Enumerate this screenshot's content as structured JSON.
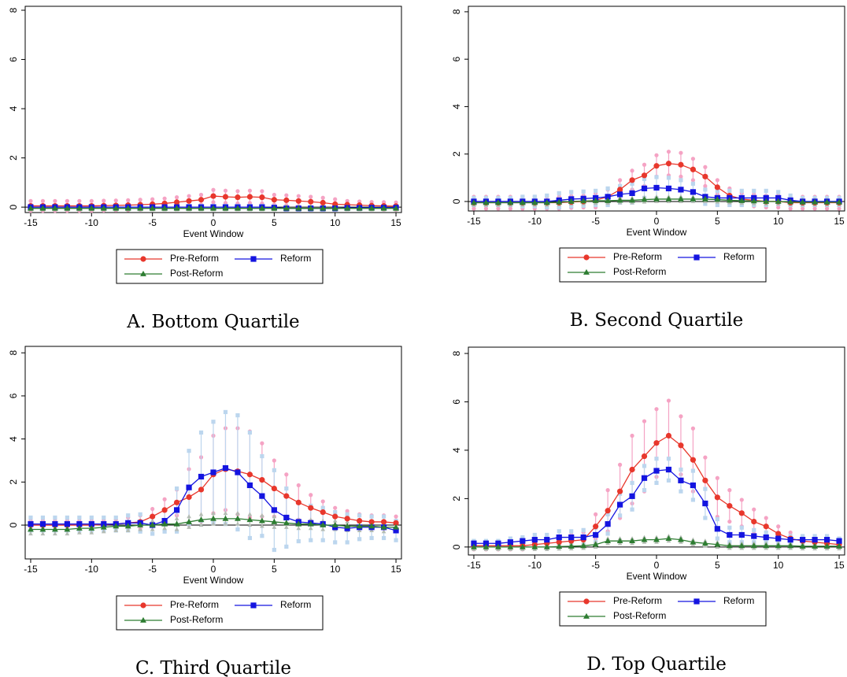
{
  "chart_data": [
    {
      "type": "line",
      "title": "A. Bottom Quartile",
      "xlabel": "Event Window",
      "x": [
        -15,
        -14,
        -13,
        -12,
        -11,
        -10,
        -9,
        -8,
        -7,
        -6,
        -5,
        -4,
        -3,
        -2,
        -1,
        0,
        1,
        2,
        3,
        4,
        5,
        6,
        7,
        8,
        9,
        10,
        11,
        12,
        13,
        14,
        15
      ],
      "xlim": [
        -15.45,
        15.45
      ],
      "ylim": [
        -0.22,
        8.16
      ],
      "xticks": [
        -15,
        -10,
        -5,
        0,
        5,
        10,
        15
      ],
      "yticks": [
        0,
        2,
        4,
        6,
        8
      ],
      "legend": "bottom",
      "series": [
        {
          "name": "Pre-Reform",
          "color": "#e8372c",
          "ci_color": "#f5a3c4",
          "marker": "circle",
          "values": [
            0.05,
            0.05,
            0.05,
            0.05,
            0.05,
            0.05,
            0.06,
            0.07,
            0.08,
            0.1,
            0.12,
            0.15,
            0.2,
            0.25,
            0.3,
            0.45,
            0.42,
            0.4,
            0.42,
            0.4,
            0.3,
            0.28,
            0.25,
            0.22,
            0.18,
            0.12,
            0.1,
            0.08,
            0.06,
            0.05,
            0.04
          ],
          "errors": [
            0.2,
            0.2,
            0.2,
            0.2,
            0.2,
            0.2,
            0.2,
            0.2,
            0.2,
            0.2,
            0.2,
            0.2,
            0.2,
            0.2,
            0.2,
            0.25,
            0.25,
            0.25,
            0.25,
            0.25,
            0.2,
            0.2,
            0.2,
            0.2,
            0.2,
            0.2,
            0.15,
            0.15,
            0.15,
            0.15,
            0.15
          ]
        },
        {
          "name": "Reform",
          "color": "#1414e0",
          "ci_color": "#bcd6ee",
          "marker": "square",
          "values": [
            0,
            0,
            0,
            0,
            0,
            0,
            0,
            0,
            0,
            0,
            0,
            0,
            0,
            0,
            0,
            0,
            0,
            0,
            0,
            0,
            -0.02,
            -0.05,
            -0.05,
            -0.05,
            -0.05,
            -0.05,
            -0.03,
            -0.03,
            -0.02,
            -0.02,
            -0.02
          ],
          "errors": [
            0.05,
            0.05,
            0.05,
            0.05,
            0.05,
            0.05,
            0.05,
            0.05,
            0.05,
            0.05,
            0.05,
            0.05,
            0.05,
            0.05,
            0.05,
            0.05,
            0.05,
            0.05,
            0.05,
            0.05,
            0.05,
            0.05,
            0.05,
            0.05,
            0.05,
            0.05,
            0.05,
            0.05,
            0.05,
            0.05,
            0.05
          ]
        },
        {
          "name": "Post-Reform",
          "color": "#2e7d32",
          "ci_color": "#b4bcb4",
          "marker": "triangle",
          "values": [
            -0.05,
            -0.05,
            -0.05,
            -0.05,
            -0.05,
            -0.05,
            -0.05,
            -0.05,
            -0.05,
            -0.05,
            -0.05,
            -0.05,
            -0.05,
            -0.05,
            -0.05,
            -0.05,
            -0.05,
            -0.05,
            -0.05,
            -0.05,
            -0.05,
            -0.05,
            -0.05,
            -0.05,
            -0.05,
            -0.05,
            -0.05,
            -0.05,
            -0.05,
            -0.05,
            -0.05
          ],
          "errors": [
            0.05,
            0.05,
            0.05,
            0.05,
            0.05,
            0.05,
            0.05,
            0.05,
            0.05,
            0.05,
            0.05,
            0.05,
            0.05,
            0.05,
            0.05,
            0.05,
            0.05,
            0.05,
            0.05,
            0.05,
            0.05,
            0.05,
            0.05,
            0.05,
            0.05,
            0.05,
            0.05,
            0.05,
            0.05,
            0.05,
            0.05
          ]
        }
      ]
    },
    {
      "type": "line",
      "title": "B. Second Quartile",
      "xlabel": "Event Window",
      "x": [
        -15,
        -14,
        -13,
        -12,
        -11,
        -10,
        -9,
        -8,
        -7,
        -6,
        -5,
        -4,
        -3,
        -2,
        -1,
        0,
        1,
        2,
        3,
        4,
        5,
        6,
        7,
        8,
        9,
        10,
        11,
        12,
        13,
        14,
        15
      ],
      "xlim": [
        -15.45,
        15.45
      ],
      "ylim": [
        -0.4,
        8.23
      ],
      "xticks": [
        -15,
        -10,
        -5,
        0,
        5,
        10,
        15
      ],
      "yticks": [
        0,
        2,
        4,
        6,
        8
      ],
      "legend": "bottom",
      "series": [
        {
          "name": "Pre-Reform",
          "color": "#e8372c",
          "ci_color": "#f5a3c4",
          "marker": "circle",
          "values": [
            -0.05,
            -0.05,
            -0.05,
            -0.05,
            -0.05,
            -0.05,
            -0.05,
            -0.05,
            -0.02,
            0,
            0.05,
            0.2,
            0.5,
            0.9,
            1.1,
            1.5,
            1.6,
            1.55,
            1.35,
            1.05,
            0.6,
            0.25,
            0.1,
            0.05,
            0,
            0,
            -0.05,
            -0.05,
            -0.05,
            -0.05,
            -0.05
          ],
          "errors": [
            0.25,
            0.25,
            0.25,
            0.25,
            0.25,
            0.25,
            0.25,
            0.25,
            0.25,
            0.25,
            0.3,
            0.3,
            0.4,
            0.4,
            0.45,
            0.45,
            0.5,
            0.5,
            0.45,
            0.4,
            0.3,
            0.3,
            0.25,
            0.25,
            0.25,
            0.25,
            0.25,
            0.25,
            0.25,
            0.25,
            0.25
          ]
        },
        {
          "name": "Reform",
          "color": "#1414e0",
          "ci_color": "#bcd6ee",
          "marker": "square",
          "values": [
            0,
            0,
            0,
            0,
            0,
            0,
            0,
            0.05,
            0.1,
            0.12,
            0.15,
            0.2,
            0.3,
            0.35,
            0.55,
            0.58,
            0.55,
            0.5,
            0.4,
            0.2,
            0.15,
            0.15,
            0.15,
            0.15,
            0.15,
            0.15,
            0.05,
            0,
            0,
            0,
            0
          ],
          "errors": [
            0.15,
            0.15,
            0.15,
            0.15,
            0.2,
            0.2,
            0.25,
            0.3,
            0.3,
            0.3,
            0.3,
            0.35,
            0.35,
            0.4,
            0.4,
            0.45,
            0.45,
            0.4,
            0.35,
            0.3,
            0.3,
            0.3,
            0.3,
            0.3,
            0.3,
            0.25,
            0.2,
            0.15,
            0.15,
            0.15,
            0.15
          ]
        },
        {
          "name": "Post-Reform",
          "color": "#2e7d32",
          "ci_color": "#b4bcb4",
          "marker": "triangle",
          "values": [
            -0.05,
            -0.05,
            -0.05,
            -0.05,
            -0.05,
            -0.05,
            -0.05,
            -0.03,
            0,
            0.02,
            0.03,
            0.03,
            0.05,
            0.05,
            0.08,
            0.1,
            0.1,
            0.1,
            0.1,
            0.1,
            0.08,
            0.05,
            0.03,
            0.02,
            0,
            0,
            -0.02,
            -0.03,
            -0.03,
            -0.03,
            -0.03
          ],
          "errors": [
            0.1,
            0.1,
            0.1,
            0.1,
            0.1,
            0.1,
            0.1,
            0.1,
            0.1,
            0.1,
            0.1,
            0.1,
            0.1,
            0.1,
            0.1,
            0.1,
            0.1,
            0.1,
            0.1,
            0.1,
            0.1,
            0.1,
            0.1,
            0.1,
            0.1,
            0.1,
            0.1,
            0.1,
            0.1,
            0.1,
            0.1
          ]
        }
      ]
    },
    {
      "type": "line",
      "title": "C. Third Quartile",
      "xlabel": "Event Window",
      "x": [
        -15,
        -14,
        -13,
        -12,
        -11,
        -10,
        -9,
        -8,
        -7,
        -6,
        -5,
        -4,
        -3,
        -2,
        -1,
        0,
        1,
        2,
        3,
        4,
        5,
        6,
        7,
        8,
        9,
        10,
        11,
        12,
        13,
        14,
        15
      ],
      "xlim": [
        -15.45,
        15.45
      ],
      "ylim": [
        -1.57,
        8.3
      ],
      "xticks": [
        -15,
        -10,
        -5,
        0,
        5,
        10,
        15
      ],
      "yticks": [
        0,
        2,
        4,
        6,
        8
      ],
      "legend": "bottom",
      "series": [
        {
          "name": "Pre-Reform",
          "color": "#e8372c",
          "ci_color": "#f5a3c4",
          "marker": "circle",
          "values": [
            0,
            0,
            0,
            0,
            0,
            0,
            0.02,
            0.05,
            0.1,
            0.15,
            0.4,
            0.7,
            1.05,
            1.3,
            1.65,
            2.35,
            2.6,
            2.5,
            2.35,
            2.1,
            1.7,
            1.35,
            1.05,
            0.8,
            0.6,
            0.4,
            0.3,
            0.2,
            0.15,
            0.15,
            0.1
          ],
          "errors": [
            0.2,
            0.2,
            0.2,
            0.2,
            0.2,
            0.2,
            0.2,
            0.2,
            0.25,
            0.3,
            0.35,
            0.5,
            0.6,
            1.3,
            1.5,
            1.8,
            1.9,
            2.0,
            2.0,
            1.7,
            1.3,
            1.0,
            0.8,
            0.6,
            0.5,
            0.4,
            0.35,
            0.3,
            0.3,
            0.3,
            0.3
          ]
        },
        {
          "name": "Reform",
          "color": "#1414e0",
          "ci_color": "#bcd6ee",
          "marker": "square",
          "values": [
            0.05,
            0.05,
            0.05,
            0.05,
            0.05,
            0.05,
            0.05,
            0.05,
            0.1,
            0.1,
            0,
            0.2,
            0.7,
            1.75,
            2.25,
            2.45,
            2.65,
            2.45,
            1.85,
            1.35,
            0.7,
            0.35,
            0.15,
            0.1,
            0.05,
            -0.1,
            -0.15,
            -0.1,
            -0.1,
            -0.1,
            -0.25
          ],
          "errors": [
            0.3,
            0.3,
            0.3,
            0.3,
            0.3,
            0.3,
            0.3,
            0.3,
            0.35,
            0.4,
            0.4,
            0.5,
            1.0,
            1.7,
            2.05,
            2.35,
            2.6,
            2.65,
            2.45,
            1.85,
            1.85,
            1.35,
            0.9,
            0.8,
            0.75,
            0.7,
            0.65,
            0.55,
            0.5,
            0.5,
            0.45
          ]
        },
        {
          "name": "Post-Reform",
          "color": "#2e7d32",
          "ci_color": "#b4bcb4",
          "marker": "triangle",
          "values": [
            -0.2,
            -0.2,
            -0.2,
            -0.2,
            -0.15,
            -0.15,
            -0.1,
            -0.05,
            -0.05,
            0,
            0,
            0.05,
            0.05,
            0.15,
            0.25,
            0.3,
            0.3,
            0.3,
            0.25,
            0.2,
            0.15,
            0.1,
            0.05,
            0.05,
            0,
            0,
            -0.05,
            -0.05,
            -0.05,
            -0.1,
            -0.1
          ],
          "errors": [
            0.2,
            0.2,
            0.2,
            0.2,
            0.2,
            0.2,
            0.2,
            0.2,
            0.2,
            0.2,
            0.2,
            0.2,
            0.25,
            0.25,
            0.25,
            0.25,
            0.25,
            0.25,
            0.25,
            0.25,
            0.25,
            0.2,
            0.2,
            0.2,
            0.2,
            0.2,
            0.2,
            0.2,
            0.2,
            0.2,
            0.2
          ]
        }
      ]
    },
    {
      "type": "line",
      "title": "D. Top Quartile",
      "xlabel": "Event Window",
      "x": [
        -15,
        -14,
        -13,
        -12,
        -11,
        -10,
        -9,
        -8,
        -7,
        -6,
        -5,
        -4,
        -3,
        -2,
        -1,
        0,
        1,
        2,
        3,
        4,
        5,
        6,
        7,
        8,
        9,
        10,
        11,
        12,
        13,
        14,
        15
      ],
      "xlim": [
        -15.45,
        15.45
      ],
      "ylim": [
        -0.33,
        8.26
      ],
      "xticks": [
        -15,
        -10,
        -5,
        0,
        5,
        10,
        15
      ],
      "yticks": [
        0,
        2,
        4,
        6,
        8
      ],
      "legend": "bottom",
      "series": [
        {
          "name": "Pre-Reform",
          "color": "#e8372c",
          "ci_color": "#f5a3c4",
          "marker": "circle",
          "values": [
            0.05,
            0.05,
            0.05,
            0.05,
            0.05,
            0.1,
            0.15,
            0.2,
            0.25,
            0.3,
            0.85,
            1.5,
            2.3,
            3.2,
            3.75,
            4.3,
            4.6,
            4.2,
            3.6,
            2.75,
            2.05,
            1.7,
            1.4,
            1.05,
            0.85,
            0.55,
            0.35,
            0.25,
            0.2,
            0.15,
            0.1
          ],
          "errors": [
            0.15,
            0.15,
            0.15,
            0.15,
            0.15,
            0.15,
            0.2,
            0.2,
            0.25,
            0.3,
            0.5,
            0.85,
            1.1,
            1.4,
            1.45,
            1.4,
            1.45,
            1.2,
            1.3,
            0.95,
            0.8,
            0.65,
            0.55,
            0.5,
            0.35,
            0.3,
            0.25,
            0.2,
            0.2,
            0.2,
            0.15
          ]
        },
        {
          "name": "Reform",
          "color": "#1414e0",
          "ci_color": "#bcd6ee",
          "marker": "square",
          "values": [
            0.15,
            0.15,
            0.15,
            0.2,
            0.25,
            0.3,
            0.3,
            0.4,
            0.4,
            0.4,
            0.5,
            0.95,
            1.75,
            2.1,
            2.85,
            3.15,
            3.2,
            2.75,
            2.55,
            1.8,
            0.75,
            0.5,
            0.5,
            0.45,
            0.4,
            0.35,
            0.3,
            0.3,
            0.3,
            0.3,
            0.25
          ],
          "errors": [
            0.1,
            0.1,
            0.1,
            0.15,
            0.15,
            0.2,
            0.2,
            0.25,
            0.25,
            0.3,
            0.3,
            0.4,
            0.45,
            0.55,
            0.5,
            0.5,
            0.45,
            0.45,
            0.6,
            0.6,
            0.4,
            0.3,
            0.3,
            0.25,
            0.2,
            0.2,
            0.15,
            0.15,
            0.15,
            0.15,
            0.1
          ]
        },
        {
          "name": "Post-Reform",
          "color": "#2e7d32",
          "ci_color": "#b4bcb4",
          "marker": "triangle",
          "values": [
            0,
            0,
            0,
            0,
            0,
            0,
            0,
            0.02,
            0.03,
            0.05,
            0.1,
            0.25,
            0.25,
            0.25,
            0.3,
            0.3,
            0.35,
            0.3,
            0.2,
            0.15,
            0.1,
            0.05,
            0.05,
            0.05,
            0.05,
            0.05,
            0.05,
            0.03,
            0.03,
            0.03,
            0.03
          ],
          "errors": [
            0.1,
            0.1,
            0.1,
            0.1,
            0.1,
            0.1,
            0.1,
            0.1,
            0.1,
            0.1,
            0.1,
            0.1,
            0.1,
            0.1,
            0.1,
            0.1,
            0.1,
            0.1,
            0.1,
            0.1,
            0.1,
            0.1,
            0.1,
            0.1,
            0.1,
            0.1,
            0.1,
            0.1,
            0.1,
            0.1,
            0.1
          ]
        }
      ]
    }
  ]
}
